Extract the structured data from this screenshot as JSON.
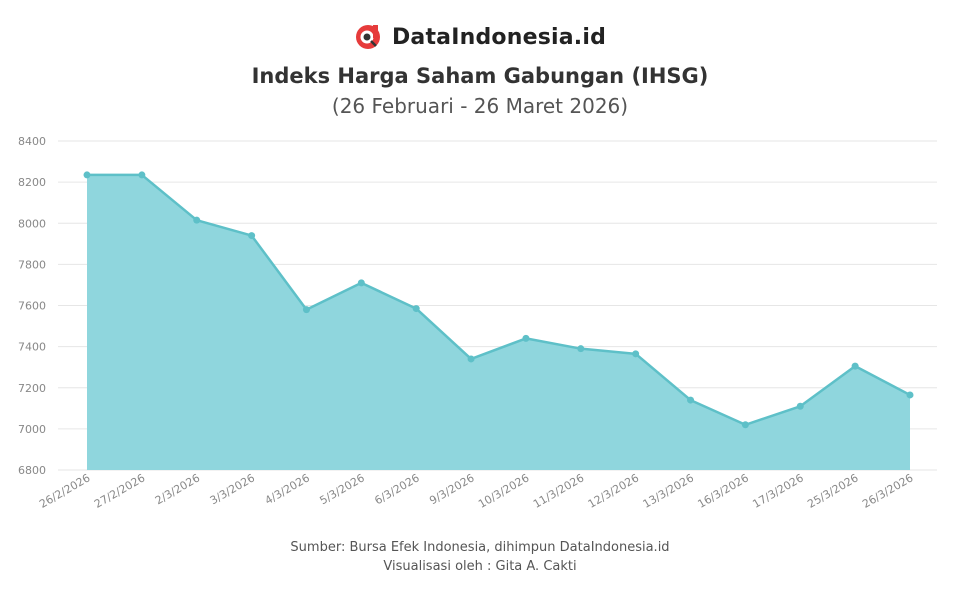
{
  "brand": {
    "name": "DataIndonesia.id",
    "logo_icon": "dataindonesia-logo-icon",
    "logo_color": "#e63b3b"
  },
  "chart_data": {
    "type": "area",
    "title": "Indeks Harga Saham Gabungan (IHSG)",
    "subtitle": "(26 Februari - 26 Maret 2026)",
    "categories": [
      "26/2/2026",
      "27/2/2026",
      "2/3/2026",
      "3/3/2026",
      "4/3/2026",
      "5/3/2026",
      "6/3/2026",
      "9/3/2026",
      "10/3/2026",
      "11/3/2026",
      "12/3/2026",
      "13/3/2026",
      "16/3/2026",
      "17/3/2026",
      "25/3/2026",
      "26/3/2026"
    ],
    "series": [
      {
        "values": [
          8235,
          8235,
          8015,
          7940,
          7580,
          7710,
          7585,
          7340,
          7440,
          7390,
          7365,
          7140,
          7020,
          7110,
          7305,
          7165
        ]
      }
    ],
    "ylim": [
      6800,
      8400
    ],
    "yticks": [
      6800,
      7000,
      7200,
      7400,
      7600,
      7800,
      8000,
      8200,
      8400
    ],
    "grid": true,
    "fill_color": "#8fd6dd",
    "line_color": "#5ec0c8"
  },
  "footer": {
    "source": "Sumber: Bursa Efek Indonesia, dihimpun DataIndonesia.id",
    "credit": "Visualisasi oleh : Gita A. Cakti"
  }
}
